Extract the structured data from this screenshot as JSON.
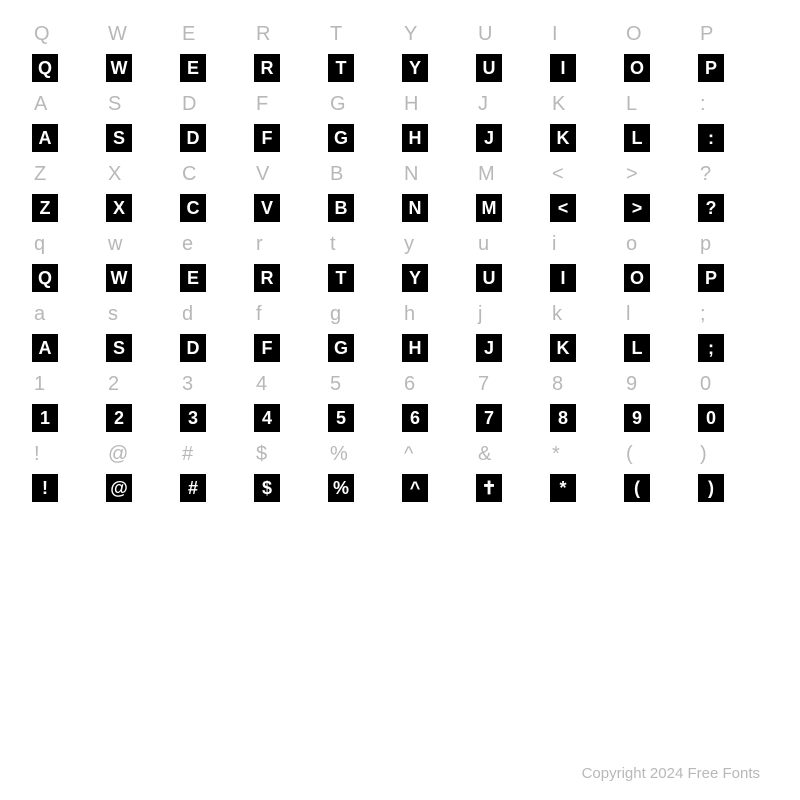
{
  "rows": [
    {
      "labels": [
        "Q",
        "W",
        "E",
        "R",
        "T",
        "Y",
        "U",
        "I",
        "O",
        "P"
      ],
      "glyphs": [
        "Q",
        "W",
        "E",
        "R",
        "T",
        "Y",
        "U",
        "I",
        "O",
        "P"
      ]
    },
    {
      "labels": [
        "A",
        "S",
        "D",
        "F",
        "G",
        "H",
        "J",
        "K",
        "L",
        ":"
      ],
      "glyphs": [
        "A",
        "S",
        "D",
        "F",
        "G",
        "H",
        "J",
        "K",
        "L",
        ":"
      ]
    },
    {
      "labels": [
        "Z",
        "X",
        "C",
        "V",
        "B",
        "N",
        "M",
        "<",
        ">",
        "?"
      ],
      "glyphs": [
        "Z",
        "X",
        "C",
        "V",
        "B",
        "N",
        "M",
        "<",
        ">",
        "?"
      ]
    },
    {
      "labels": [
        "q",
        "w",
        "e",
        "r",
        "t",
        "y",
        "u",
        "i",
        "o",
        "p"
      ],
      "glyphs": [
        "Q",
        "W",
        "E",
        "R",
        "T",
        "Y",
        "U",
        "I",
        "O",
        "P"
      ]
    },
    {
      "labels": [
        "a",
        "s",
        "d",
        "f",
        "g",
        "h",
        "j",
        "k",
        "l",
        ";"
      ],
      "glyphs": [
        "A",
        "S",
        "D",
        "F",
        "G",
        "H",
        "J",
        "K",
        "L",
        ";"
      ]
    },
    {
      "labels": [
        "1",
        "2",
        "3",
        "4",
        "5",
        "6",
        "7",
        "8",
        "9",
        "0"
      ],
      "glyphs": [
        "1",
        "2",
        "3",
        "4",
        "5",
        "6",
        "7",
        "8",
        "9",
        "0"
      ]
    },
    {
      "labels": [
        "!",
        "@",
        "#",
        "$",
        "%",
        "^",
        "&",
        "*",
        "(",
        ")"
      ],
      "glyphs": [
        "!",
        "@",
        "#",
        "$",
        "%",
        "^",
        "✝",
        "*",
        "(",
        ")"
      ]
    }
  ],
  "styling": {
    "label_color": "#b8b8b8",
    "label_fontsize": 20,
    "glyph_bg": "#000000",
    "glyph_fg": "#ffffff",
    "glyph_box_width": 26,
    "glyph_box_height": 28,
    "glyph_fontsize": 18,
    "page_bg": "#ffffff",
    "columns": 10
  },
  "copyright": "Copyright 2024 Free Fonts"
}
